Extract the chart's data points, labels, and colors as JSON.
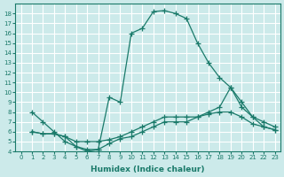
{
  "xlabel": "Humidex (Indice chaleur)",
  "bg_color": "#cceaea",
  "grid_color": "#ffffff",
  "line_color": "#1a7a6a",
  "xlim": [
    -0.5,
    23.5
  ],
  "ylim": [
    4,
    19
  ],
  "xticks": [
    0,
    1,
    2,
    3,
    4,
    5,
    6,
    7,
    8,
    9,
    10,
    11,
    12,
    13,
    14,
    15,
    16,
    17,
    18,
    19,
    20,
    21,
    22,
    23
  ],
  "yticks": [
    4,
    5,
    6,
    7,
    8,
    9,
    10,
    11,
    12,
    13,
    14,
    15,
    16,
    17,
    18
  ],
  "series": [
    {
      "x": [
        1,
        2,
        3,
        4,
        5,
        6,
        7,
        8,
        9,
        10,
        11,
        12,
        13,
        14,
        15,
        16,
        17,
        18,
        19,
        20,
        21,
        22,
        23
      ],
      "y": [
        8,
        7,
        6,
        5,
        4.5,
        4,
        4.2,
        9.5,
        9,
        16,
        16.5,
        18.2,
        18.3,
        18.0,
        17.5,
        15.0,
        13.0,
        11.5,
        10.5,
        8.5,
        7.5,
        7.0,
        6.5
      ]
    },
    {
      "x": [
        1,
        2,
        3,
        4,
        5,
        6,
        7,
        8,
        9,
        10,
        11,
        12,
        13,
        14,
        15,
        16,
        17,
        18,
        19,
        20,
        21,
        22,
        23
      ],
      "y": [
        6.0,
        5.8,
        5.8,
        5.5,
        4.5,
        4.2,
        4.2,
        4.8,
        5.3,
        5.5,
        6.0,
        6.5,
        7.0,
        7.0,
        7.0,
        7.5,
        8.0,
        8.5,
        10.5,
        9.0,
        7.5,
        6.5,
        6.2
      ]
    },
    {
      "x": [
        1,
        2,
        3,
        4,
        5,
        6,
        7,
        8,
        9,
        10,
        11,
        12,
        13,
        14,
        15,
        16,
        17,
        18,
        19,
        20,
        21,
        22,
        23
      ],
      "y": [
        6.0,
        5.8,
        5.8,
        5.5,
        5.0,
        5.0,
        5.0,
        5.2,
        5.5,
        6.0,
        6.5,
        7.0,
        7.5,
        7.5,
        7.5,
        7.5,
        7.8,
        8.0,
        8.0,
        7.5,
        6.8,
        6.5,
        6.2
      ]
    }
  ]
}
